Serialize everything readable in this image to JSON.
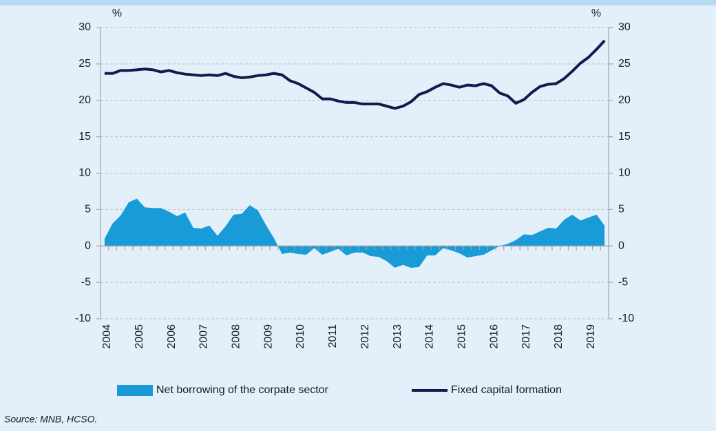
{
  "chart_data": {
    "type": "area-line",
    "ylabel": "%",
    "y2label": "%",
    "source": "Source: MNB, HCSO.",
    "categories": [
      "2004",
      null,
      null,
      null,
      "2005",
      null,
      null,
      null,
      "2006",
      null,
      null,
      null,
      "2007",
      null,
      null,
      null,
      "2008",
      null,
      null,
      null,
      "2009",
      null,
      null,
      null,
      "2010",
      null,
      null,
      null,
      "2011",
      null,
      null,
      null,
      "2012",
      null,
      null,
      null,
      "2013",
      null,
      null,
      null,
      "2014",
      null,
      null,
      null,
      "2015",
      null,
      null,
      null,
      "2016",
      null,
      null,
      null,
      "2017",
      null,
      null,
      null,
      "2018",
      null,
      null,
      null,
      "2019",
      null,
      null
    ],
    "series": [
      {
        "name": "Net borrowing of the corpate sector",
        "color": "#189bd7",
        "kind": "area",
        "values": [
          1.0,
          3.1,
          4.2,
          6.0,
          6.5,
          5.3,
          5.2,
          5.2,
          4.7,
          4.1,
          4.6,
          2.5,
          2.4,
          2.8,
          1.4,
          2.7,
          4.3,
          4.4,
          5.6,
          4.9,
          2.9,
          1.1,
          -1.1,
          -0.9,
          -1.1,
          -1.2,
          -0.3,
          -1.2,
          -0.8,
          -0.4,
          -1.3,
          -0.9,
          -0.9,
          -1.4,
          -1.5,
          -2.1,
          -3.0,
          -2.6,
          -3.0,
          -2.9,
          -1.3,
          -1.3,
          -0.3,
          -0.6,
          -1.0,
          -1.6,
          -1.4,
          -1.2,
          -0.6,
          0.0,
          0.3,
          0.8,
          1.6,
          1.5,
          2.0,
          2.5,
          2.4,
          3.6,
          4.3,
          3.5,
          3.9,
          4.3,
          2.8
        ]
      },
      {
        "name": "Fixed capital formation",
        "color": "#0e1d4a",
        "kind": "line",
        "values": [
          23.7,
          23.7,
          24.1,
          24.1,
          24.2,
          24.3,
          24.2,
          23.9,
          24.1,
          23.8,
          23.6,
          23.5,
          23.4,
          23.5,
          23.4,
          23.7,
          23.3,
          23.1,
          23.2,
          23.4,
          23.5,
          23.7,
          23.5,
          22.7,
          22.3,
          21.7,
          21.1,
          20.2,
          20.2,
          19.9,
          19.7,
          19.7,
          19.5,
          19.5,
          19.5,
          19.2,
          18.9,
          19.2,
          19.8,
          20.8,
          21.2,
          21.8,
          22.3,
          22.1,
          21.8,
          22.1,
          22.0,
          22.3,
          22.0,
          21.0,
          20.6,
          19.6,
          20.1,
          21.1,
          21.9,
          22.2,
          22.3,
          23.0,
          24.0,
          25.1,
          25.9,
          27.0,
          28.2
        ]
      }
    ],
    "ylim": [
      -10,
      30
    ],
    "yticks": [
      -10,
      -5,
      0,
      5,
      10,
      15,
      20,
      25,
      30
    ],
    "y2lim": [
      -10,
      30
    ],
    "y2ticks": [
      -10,
      -5,
      0,
      5,
      10,
      15,
      20,
      25,
      30
    ],
    "grid": true
  }
}
